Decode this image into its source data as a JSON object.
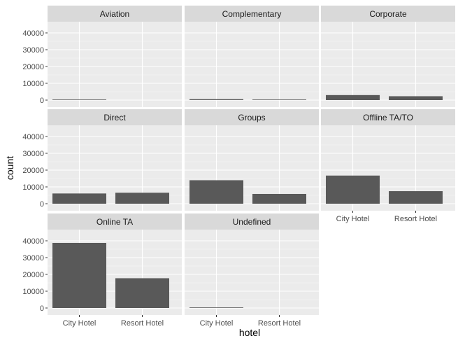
{
  "chart_data": {
    "type": "bar",
    "facet_layout": "3 columns, free x label placement",
    "xlabel": "hotel",
    "ylabel": "count",
    "ylim": [
      0,
      45000
    ],
    "yticks": [
      0,
      10000,
      20000,
      30000,
      40000
    ],
    "ytick_labels": [
      "0",
      "10000",
      "20000",
      "30000",
      "40000"
    ],
    "categories": [
      "City Hotel",
      "Resort Hotel"
    ],
    "grid": true,
    "colors": {
      "bar": "#595959",
      "panel": "#ebebeb",
      "strip": "#d9d9d9",
      "grid": "#ffffff"
    },
    "panels": [
      {
        "name": "Aviation",
        "values": [
          227,
          0
        ]
      },
      {
        "name": "Complementary",
        "values": [
          542,
          201
        ]
      },
      {
        "name": "Corporate",
        "values": [
          2986,
          2309
        ]
      },
      {
        "name": "Direct",
        "values": [
          6093,
          6513
        ]
      },
      {
        "name": "Groups",
        "values": [
          13975,
          5836
        ]
      },
      {
        "name": "Offline TA/TO",
        "values": [
          16747,
          7472
        ]
      },
      {
        "name": "Online TA",
        "values": [
          38748,
          17729
        ]
      },
      {
        "name": "Undefined",
        "values": [
          2,
          0
        ]
      }
    ]
  }
}
